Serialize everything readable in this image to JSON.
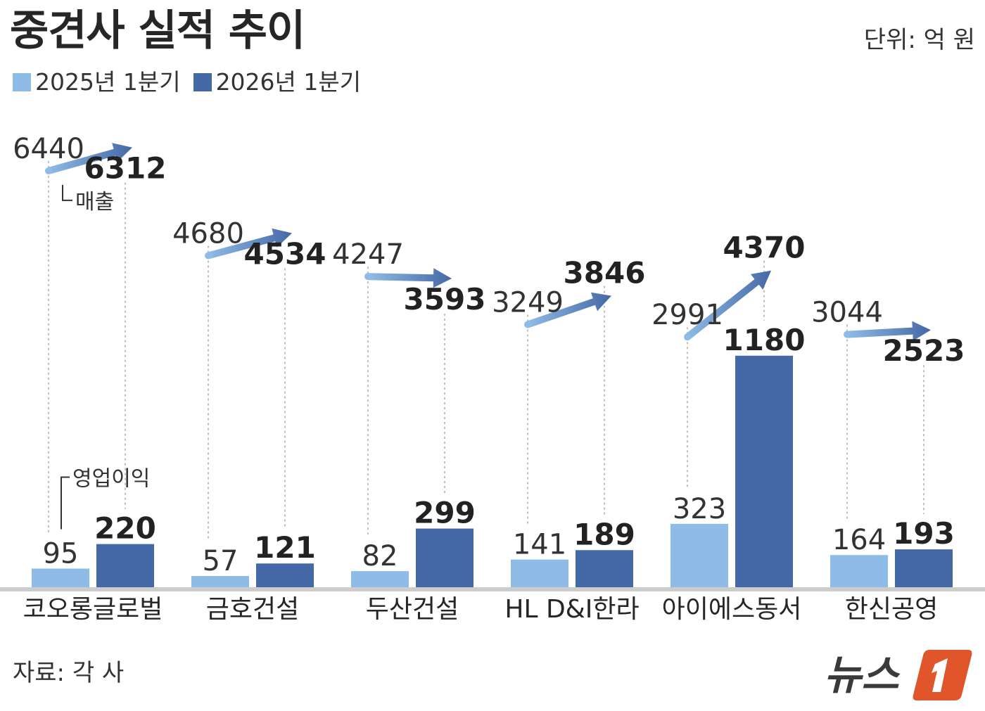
{
  "title": "중견사 실적 추이",
  "unit": "단위: 억 원",
  "legend": {
    "prev": "2025년 1분기",
    "curr": "2026년 1분기"
  },
  "source": "자료: 각 사",
  "logo_text": "뉴스1",
  "colors": {
    "prev": "#8fbce6",
    "curr": "#4568a6",
    "baseline": "#cccccc"
  },
  "chart_data": {
    "type": "bar",
    "categories": [
      "코오롱글로벌",
      "금호건설",
      "두산건설",
      "HL D&I한라",
      "아이에스동서",
      "한신공영"
    ],
    "series": [
      {
        "name": "2025년 1분기",
        "operating_profit": [
          95,
          57,
          82,
          141,
          323,
          164
        ],
        "revenue": [
          6440,
          4680,
          4247,
          3249,
          2991,
          3044
        ]
      },
      {
        "name": "2026년 1분기",
        "operating_profit": [
          220,
          121,
          299,
          189,
          1180,
          193
        ],
        "revenue": [
          6312,
          4534,
          3593,
          3846,
          4370,
          2523
        ]
      }
    ],
    "annotations": {
      "revenue": "매출",
      "operating_profit": "영업이익"
    }
  }
}
